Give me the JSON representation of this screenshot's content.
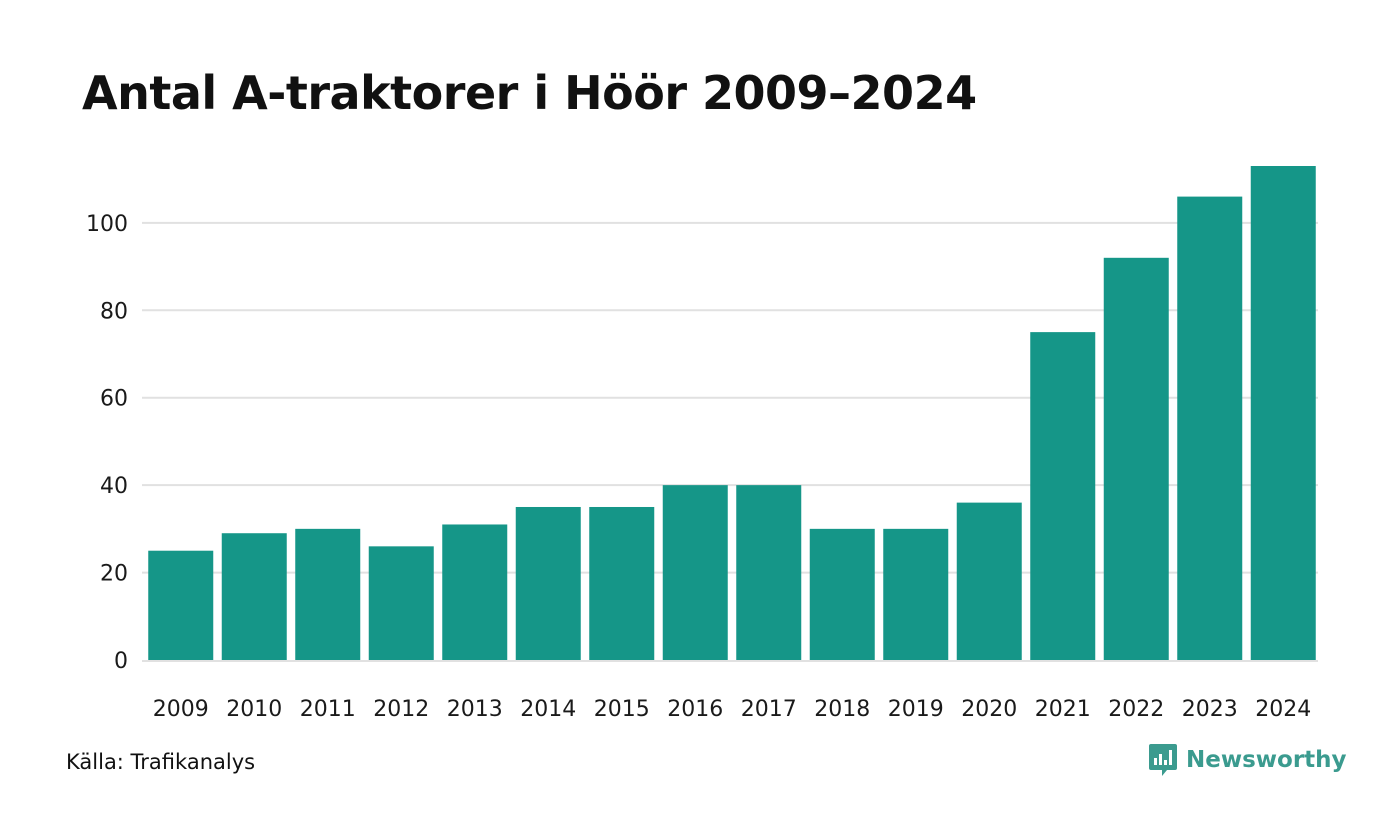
{
  "title": "Antal A-traktorer i Höör 2009–2024",
  "source": "Källa: Trafikanalys",
  "brand": {
    "name": "Newsworthy",
    "icon": "newsworthy-logo-icon",
    "color": "#3b9b8f"
  },
  "colors": {
    "bar": "#159688",
    "grid": "#e1e1e1"
  },
  "chart_data": {
    "type": "bar",
    "title": "Antal A-traktorer i Höör 2009–2024",
    "xlabel": "",
    "ylabel": "",
    "categories": [
      "2009",
      "2010",
      "2011",
      "2012",
      "2013",
      "2014",
      "2015",
      "2016",
      "2017",
      "2018",
      "2019",
      "2020",
      "2021",
      "2022",
      "2023",
      "2024"
    ],
    "values": [
      25,
      29,
      30,
      26,
      31,
      35,
      35,
      40,
      40,
      30,
      30,
      36,
      75,
      92,
      106,
      113
    ],
    "ylim": [
      0,
      113
    ],
    "yticks": [
      0,
      20,
      40,
      60,
      80,
      100
    ],
    "grid": true,
    "legend": "none"
  }
}
